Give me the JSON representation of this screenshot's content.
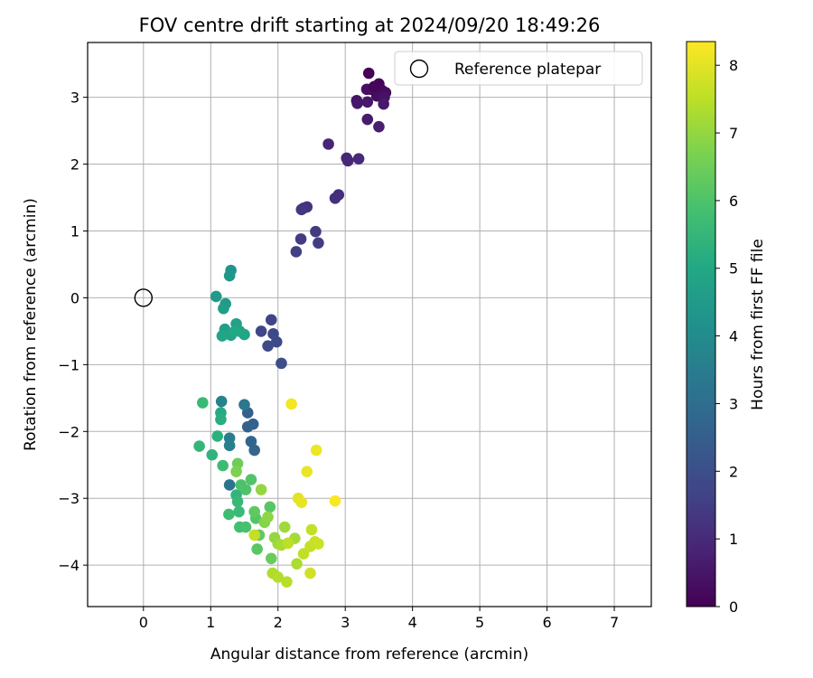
{
  "chart_data": {
    "type": "scatter",
    "title": "FOV centre drift starting at 2024/09/20 18:49:26",
    "xlabel": "Angular distance from reference (arcmin)",
    "ylabel": "Rotation from reference (arcmin)",
    "xlim": [
      -0.83,
      7.55
    ],
    "ylim": [
      -4.62,
      3.82
    ],
    "xticks": [
      0,
      1,
      2,
      3,
      4,
      5,
      6,
      7
    ],
    "xtick_labels": [
      "0",
      "1",
      "2",
      "3",
      "4",
      "5",
      "6",
      "7"
    ],
    "yticks": [
      -4,
      -3,
      -2,
      -1,
      0,
      1,
      2,
      3
    ],
    "ytick_labels": [
      "−4",
      "−3",
      "−2",
      "−1",
      "0",
      "1",
      "2",
      "3"
    ],
    "grid": true,
    "legend": {
      "position": "top-right",
      "label": "Reference platepar"
    },
    "reference": {
      "x": 0,
      "y": 0
    },
    "colorbar": {
      "label": "Hours from first FF file",
      "min": 0,
      "max": 8.35,
      "ticks": [
        0,
        1,
        2,
        3,
        4,
        5,
        6,
        7,
        8
      ],
      "tick_labels": [
        "0",
        "1",
        "2",
        "3",
        "4",
        "5",
        "6",
        "7",
        "8"
      ],
      "colormap": "viridis"
    },
    "points": [
      {
        "x": 3.35,
        "y": 3.36,
        "h": 0.05
      },
      {
        "x": 3.5,
        "y": 3.2,
        "h": 0.1
      },
      {
        "x": 3.38,
        "y": 3.12,
        "h": 0.15
      },
      {
        "x": 3.55,
        "y": 3.1,
        "h": 0.2
      },
      {
        "x": 3.6,
        "y": 3.07,
        "h": 0.25
      },
      {
        "x": 3.47,
        "y": 3.02,
        "h": 0.3
      },
      {
        "x": 3.32,
        "y": 3.12,
        "h": 0.35
      },
      {
        "x": 3.43,
        "y": 3.16,
        "h": 0.12
      },
      {
        "x": 3.58,
        "y": 3.0,
        "h": 0.4
      },
      {
        "x": 3.17,
        "y": 2.95,
        "h": 0.45
      },
      {
        "x": 3.18,
        "y": 2.91,
        "h": 0.5
      },
      {
        "x": 3.33,
        "y": 2.93,
        "h": 0.55
      },
      {
        "x": 3.57,
        "y": 2.9,
        "h": 0.6
      },
      {
        "x": 3.33,
        "y": 2.67,
        "h": 0.65
      },
      {
        "x": 3.5,
        "y": 2.56,
        "h": 0.7
      },
      {
        "x": 2.75,
        "y": 2.3,
        "h": 0.85
      },
      {
        "x": 3.02,
        "y": 2.09,
        "h": 0.9
      },
      {
        "x": 3.04,
        "y": 2.05,
        "h": 0.95
      },
      {
        "x": 3.2,
        "y": 2.08,
        "h": 1.0
      },
      {
        "x": 2.9,
        "y": 1.54,
        "h": 1.1
      },
      {
        "x": 2.85,
        "y": 1.49,
        "h": 1.15
      },
      {
        "x": 2.43,
        "y": 1.36,
        "h": 1.2
      },
      {
        "x": 2.38,
        "y": 1.34,
        "h": 1.25
      },
      {
        "x": 2.35,
        "y": 1.32,
        "h": 1.3
      },
      {
        "x": 2.56,
        "y": 0.99,
        "h": 1.4
      },
      {
        "x": 2.34,
        "y": 0.88,
        "h": 1.45
      },
      {
        "x": 2.6,
        "y": 0.82,
        "h": 1.5
      },
      {
        "x": 2.27,
        "y": 0.69,
        "h": 1.55
      },
      {
        "x": 1.9,
        "y": -0.33,
        "h": 1.7
      },
      {
        "x": 1.75,
        "y": -0.5,
        "h": 1.75
      },
      {
        "x": 1.93,
        "y": -0.54,
        "h": 1.8
      },
      {
        "x": 1.98,
        "y": -0.66,
        "h": 1.85
      },
      {
        "x": 1.85,
        "y": -0.72,
        "h": 1.9
      },
      {
        "x": 2.05,
        "y": -0.98,
        "h": 2.0
      },
      {
        "x": 1.55,
        "y": -1.72,
        "h": 2.5
      },
      {
        "x": 1.55,
        "y": -1.93,
        "h": 2.6
      },
      {
        "x": 1.63,
        "y": -1.89,
        "h": 2.65
      },
      {
        "x": 1.6,
        "y": -2.15,
        "h": 2.7
      },
      {
        "x": 1.65,
        "y": -2.28,
        "h": 2.75
      },
      {
        "x": 1.28,
        "y": -2.8,
        "h": 3.2
      },
      {
        "x": 1.5,
        "y": -1.6,
        "h": 3.3
      },
      {
        "x": 1.28,
        "y": -2.1,
        "h": 3.5
      },
      {
        "x": 1.28,
        "y": -2.21,
        "h": 3.6
      },
      {
        "x": 1.16,
        "y": -1.55,
        "h": 3.7
      },
      {
        "x": 1.3,
        "y": 0.41,
        "h": 4.3
      },
      {
        "x": 1.28,
        "y": 0.33,
        "h": 4.4
      },
      {
        "x": 1.08,
        "y": 0.02,
        "h": 4.5
      },
      {
        "x": 1.22,
        "y": -0.09,
        "h": 4.55
      },
      {
        "x": 1.19,
        "y": -0.16,
        "h": 4.6
      },
      {
        "x": 1.21,
        "y": -0.47,
        "h": 4.7
      },
      {
        "x": 1.38,
        "y": -0.39,
        "h": 4.75
      },
      {
        "x": 1.43,
        "y": -0.5,
        "h": 4.8
      },
      {
        "x": 1.3,
        "y": -0.56,
        "h": 4.85
      },
      {
        "x": 1.17,
        "y": -0.57,
        "h": 4.9
      },
      {
        "x": 1.5,
        "y": -0.55,
        "h": 4.95
      },
      {
        "x": 1.36,
        "y": -0.5,
        "h": 5.0
      },
      {
        "x": 1.15,
        "y": -1.72,
        "h": 5.1
      },
      {
        "x": 1.15,
        "y": -1.82,
        "h": 5.2
      },
      {
        "x": 1.1,
        "y": -2.07,
        "h": 5.3
      },
      {
        "x": 1.02,
        "y": -2.35,
        "h": 5.4
      },
      {
        "x": 0.83,
        "y": -2.22,
        "h": 5.5
      },
      {
        "x": 0.88,
        "y": -1.57,
        "h": 5.6
      },
      {
        "x": 1.18,
        "y": -2.51,
        "h": 5.7
      },
      {
        "x": 1.27,
        "y": -3.24,
        "h": 5.75
      },
      {
        "x": 1.43,
        "y": -3.43,
        "h": 5.8
      },
      {
        "x": 1.38,
        "y": -2.95,
        "h": 5.4
      },
      {
        "x": 1.4,
        "y": -3.05,
        "h": 5.55
      },
      {
        "x": 1.42,
        "y": -3.2,
        "h": 5.65
      },
      {
        "x": 1.52,
        "y": -3.43,
        "h": 5.9
      },
      {
        "x": 1.45,
        "y": -2.8,
        "h": 5.95
      },
      {
        "x": 1.52,
        "y": -2.87,
        "h": 6.0
      },
      {
        "x": 1.6,
        "y": -2.72,
        "h": 6.05
      },
      {
        "x": 1.67,
        "y": -3.3,
        "h": 6.1
      },
      {
        "x": 1.88,
        "y": -3.13,
        "h": 6.15
      },
      {
        "x": 1.69,
        "y": -3.76,
        "h": 6.2
      },
      {
        "x": 1.65,
        "y": -3.2,
        "h": 6.25
      },
      {
        "x": 1.72,
        "y": -3.55,
        "h": 6.3
      },
      {
        "x": 1.9,
        "y": -3.9,
        "h": 6.4
      },
      {
        "x": 1.4,
        "y": -2.48,
        "h": 6.5
      },
      {
        "x": 1.38,
        "y": -2.6,
        "h": 6.7
      },
      {
        "x": 1.8,
        "y": -3.36,
        "h": 6.8
      },
      {
        "x": 1.85,
        "y": -3.28,
        "h": 6.9
      },
      {
        "x": 1.75,
        "y": -2.87,
        "h": 7.0
      },
      {
        "x": 1.95,
        "y": -3.59,
        "h": 7.0
      },
      {
        "x": 2.0,
        "y": -3.68,
        "h": 7.1
      },
      {
        "x": 2.1,
        "y": -3.43,
        "h": 7.15
      },
      {
        "x": 2.25,
        "y": -3.6,
        "h": 7.2
      },
      {
        "x": 2.05,
        "y": -3.7,
        "h": 7.25
      },
      {
        "x": 2.28,
        "y": -3.98,
        "h": 7.3
      },
      {
        "x": 1.92,
        "y": -4.12,
        "h": 7.35
      },
      {
        "x": 2.0,
        "y": -4.18,
        "h": 7.4
      },
      {
        "x": 2.13,
        "y": -4.25,
        "h": 7.45
      },
      {
        "x": 2.15,
        "y": -3.67,
        "h": 7.5
      },
      {
        "x": 2.38,
        "y": -3.83,
        "h": 7.55
      },
      {
        "x": 2.48,
        "y": -3.72,
        "h": 7.6
      },
      {
        "x": 2.5,
        "y": -3.47,
        "h": 7.6
      },
      {
        "x": 2.55,
        "y": -3.65,
        "h": 7.65
      },
      {
        "x": 2.6,
        "y": -3.68,
        "h": 7.7
      },
      {
        "x": 2.48,
        "y": -4.12,
        "h": 7.75
      },
      {
        "x": 1.65,
        "y": -3.55,
        "h": 7.6
      },
      {
        "x": 2.3,
        "y": -3.0,
        "h": 8.0
      },
      {
        "x": 2.35,
        "y": -3.06,
        "h": 8.05
      },
      {
        "x": 2.43,
        "y": -2.6,
        "h": 8.1
      },
      {
        "x": 2.57,
        "y": -2.28,
        "h": 8.15
      },
      {
        "x": 2.2,
        "y": -1.59,
        "h": 8.2
      },
      {
        "x": 2.85,
        "y": -3.04,
        "h": 8.3
      }
    ]
  }
}
